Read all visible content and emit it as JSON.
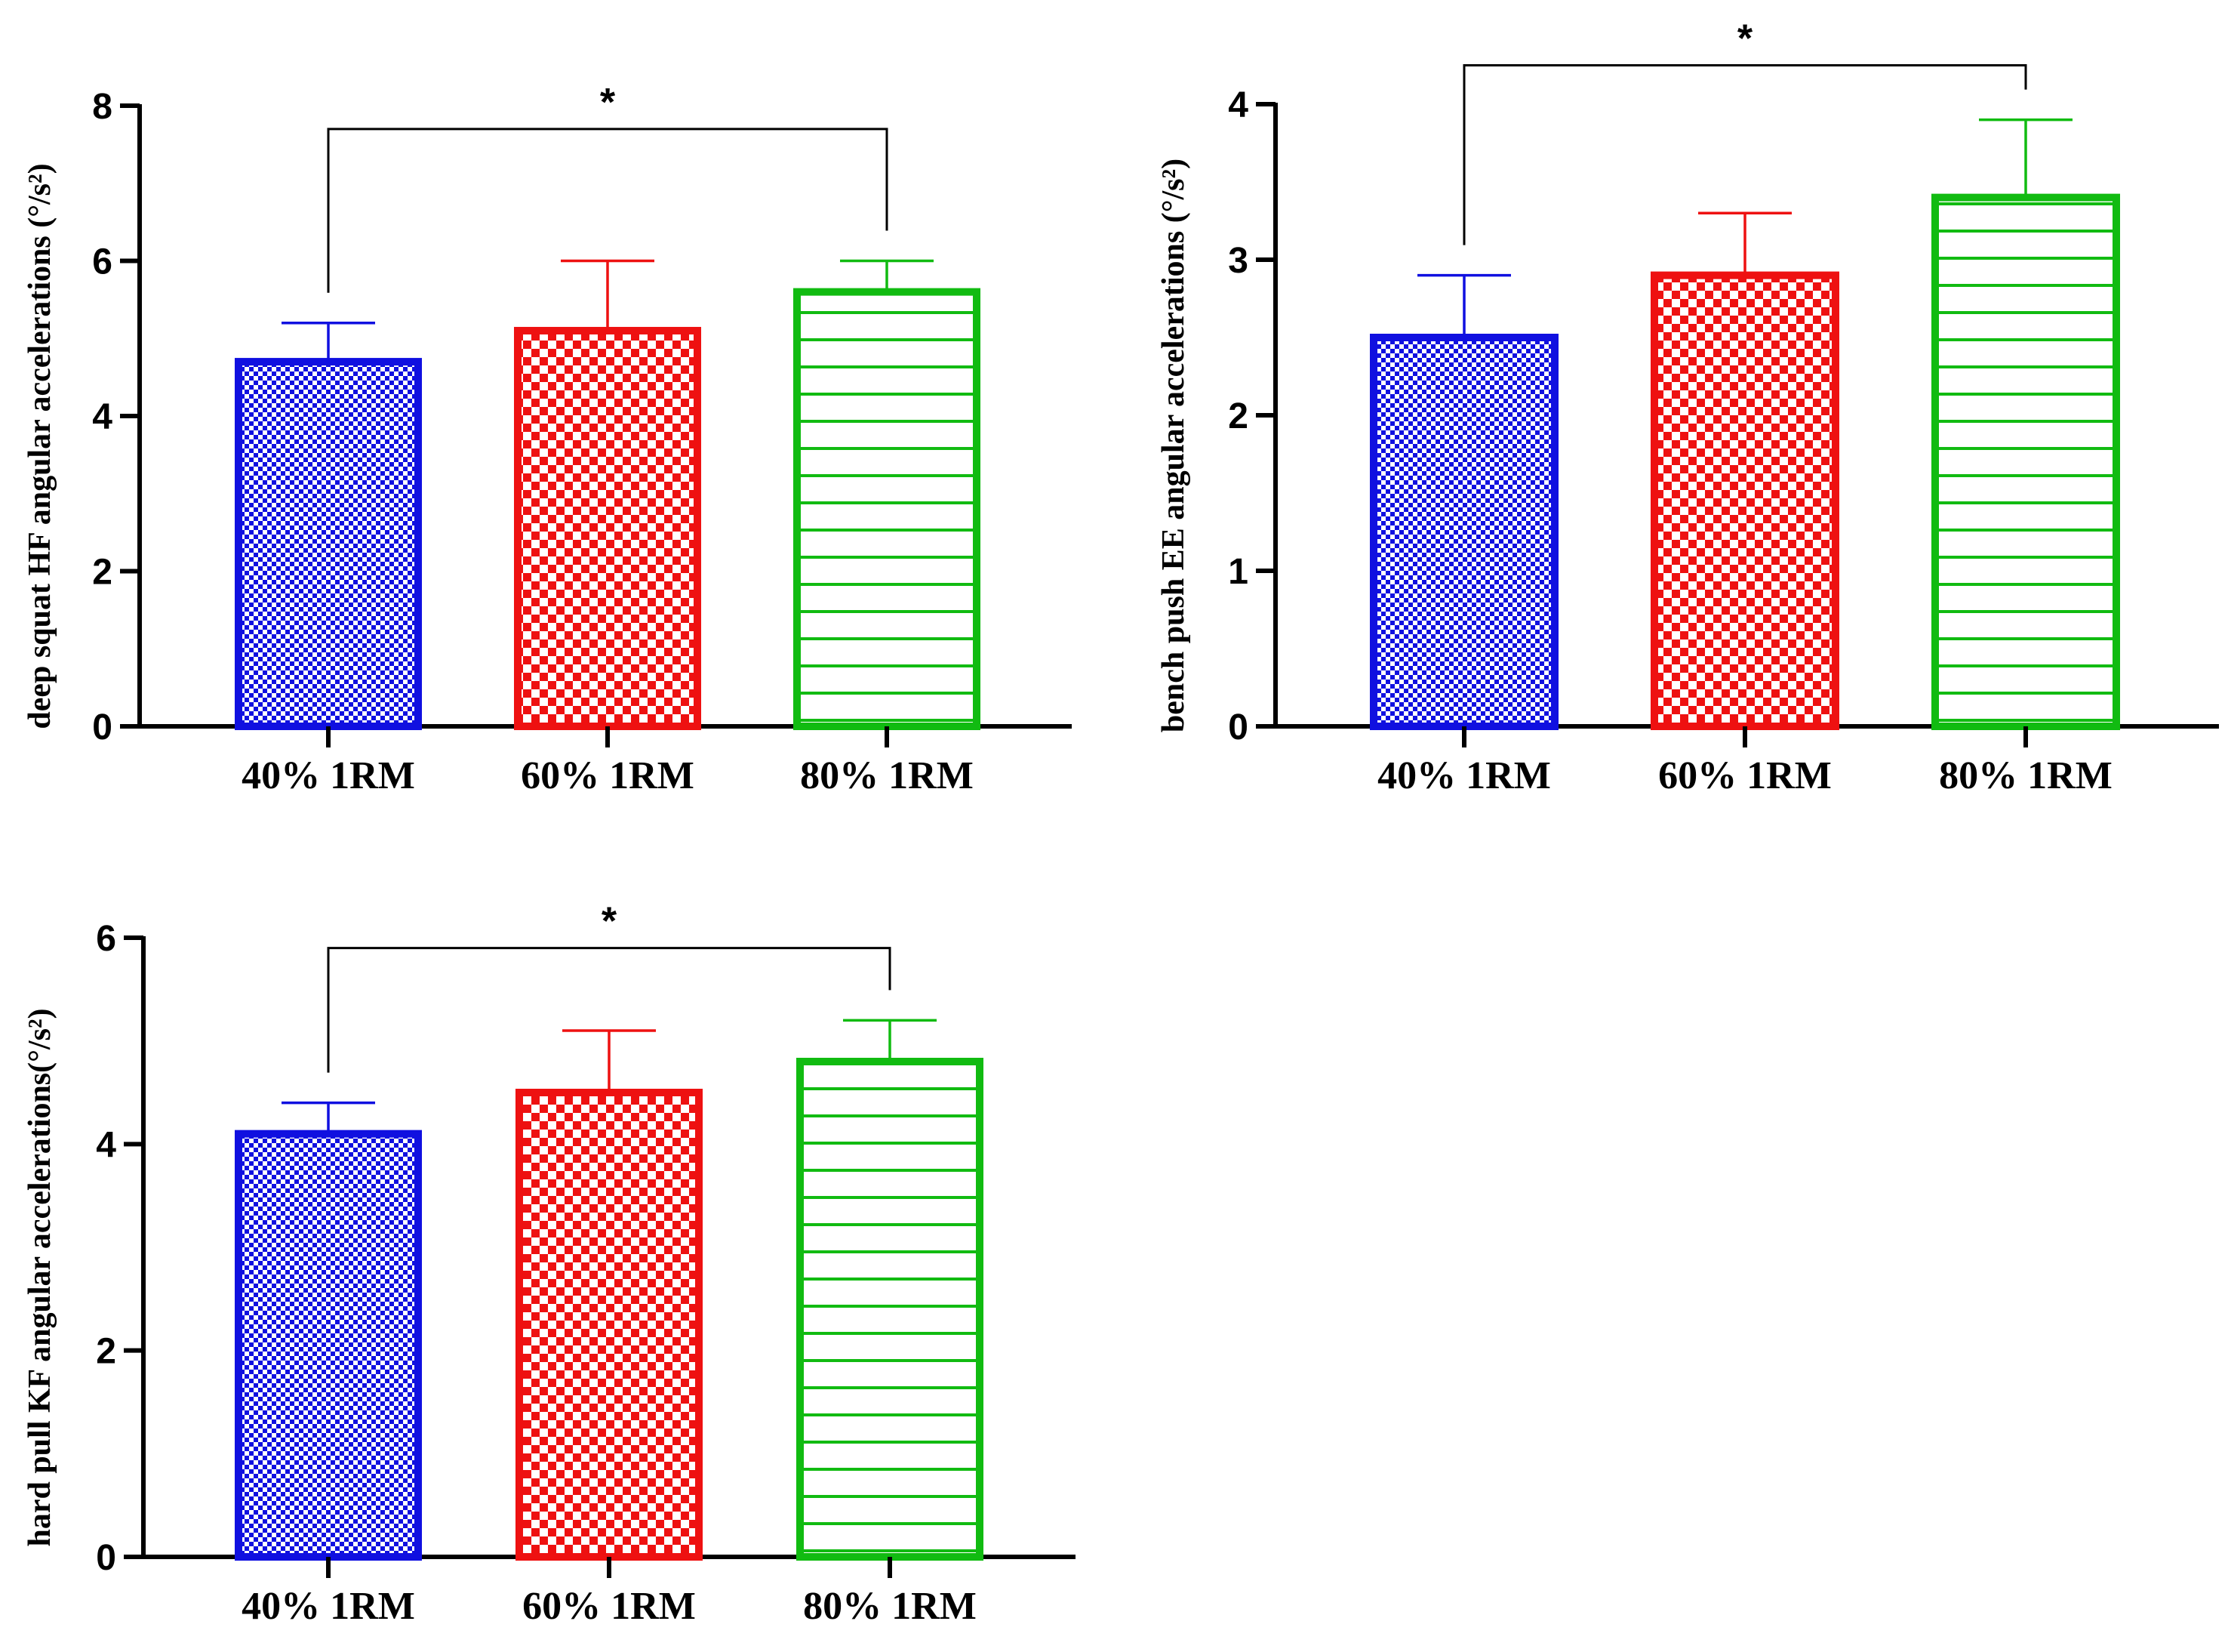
{
  "chart_data": [
    {
      "type": "bar",
      "ylabel": "deep squat HF angular accelerations (°/s²)",
      "categories": [
        "40% 1RM",
        "60% 1RM",
        "80% 1RM"
      ],
      "values": [
        4.7,
        5.1,
        5.6
      ],
      "errors": [
        0.5,
        0.9,
        0.4
      ],
      "ylim": [
        0,
        8
      ],
      "yticks": [
        0,
        2,
        4,
        6,
        8
      ],
      "significance": {
        "from": 0,
        "to": 2,
        "label": "*",
        "y": 7.7
      },
      "colors": [
        "#1010e0",
        "#ee1111",
        "#11bb11"
      ],
      "patterns": [
        "fine-check",
        "coarse-check",
        "stripes"
      ]
    },
    {
      "type": "bar",
      "ylabel": "bench push EE angular accelerations (°/s²)",
      "categories": [
        "40% 1RM",
        "60% 1RM",
        "80% 1RM"
      ],
      "values": [
        2.5,
        2.9,
        3.4
      ],
      "errors": [
        0.4,
        0.4,
        0.5
      ],
      "ylim": [
        0,
        4
      ],
      "yticks": [
        0,
        1,
        2,
        3,
        4
      ],
      "significance": {
        "from": 0,
        "to": 2,
        "label": "*",
        "y": 4.25
      },
      "colors": [
        "#1010e0",
        "#ee1111",
        "#11bb11"
      ],
      "patterns": [
        "fine-check",
        "coarse-check",
        "stripes"
      ]
    },
    {
      "type": "bar",
      "ylabel": "hard pull KF angular accelerations(°/s²)",
      "categories": [
        "40% 1RM",
        "60% 1RM",
        "80% 1RM"
      ],
      "values": [
        4.1,
        4.5,
        4.8
      ],
      "errors": [
        0.3,
        0.6,
        0.4
      ],
      "ylim": [
        0,
        6
      ],
      "yticks": [
        0,
        2,
        4,
        6
      ],
      "significance": {
        "from": 0,
        "to": 2,
        "label": "*",
        "y": 5.9
      },
      "colors": [
        "#1010e0",
        "#ee1111",
        "#11bb11"
      ],
      "patterns": [
        "fine-check",
        "coarse-check",
        "stripes"
      ]
    }
  ]
}
